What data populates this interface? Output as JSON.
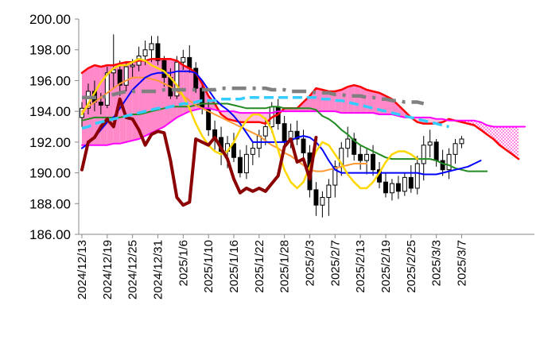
{
  "chart_data": {
    "type": "candlestick",
    "title": "",
    "xlabel": "",
    "ylabel": "",
    "ylim": [
      186,
      200
    ],
    "y_ticks": [
      "186.00",
      "188.00",
      "190.00",
      "192.00",
      "194.00",
      "196.00",
      "198.00",
      "200.00"
    ],
    "x_tick_labels": [
      "2024/12/13",
      "2024/12/19",
      "2024/12/25",
      "2024/12/31",
      "2025/1/6",
      "2025/1/10",
      "2025/1/16",
      "2025/1/22",
      "2025/1/28",
      "2025/2/3",
      "2025/2/7",
      "2025/2/13",
      "2025/2/19",
      "2025/2/25",
      "2025/3/3",
      "2025/3/7"
    ],
    "grid": false,
    "legend": "none",
    "period_count": 72,
    "candles": [
      [
        193.6,
        194.6,
        193.0,
        194.2
      ],
      [
        194.2,
        195.8,
        193.8,
        195.3
      ],
      [
        195.3,
        196.0,
        194.0,
        194.6
      ],
      [
        194.6,
        195.2,
        193.8,
        194.4
      ],
      [
        194.4,
        196.9,
        194.2,
        196.5
      ],
      [
        196.5,
        199.0,
        195.5,
        196.7
      ],
      [
        196.7,
        197.3,
        195.0,
        195.7
      ],
      [
        195.7,
        197.2,
        195.3,
        196.9
      ],
      [
        196.9,
        197.4,
        196.2,
        197.0
      ],
      [
        197.0,
        198.2,
        196.6,
        197.6
      ],
      [
        197.6,
        198.6,
        197.0,
        198.0
      ],
      [
        198.0,
        198.9,
        197.2,
        198.4
      ],
      [
        198.4,
        198.9,
        197.0,
        197.3
      ],
      [
        197.3,
        197.6,
        195.6,
        196.2
      ],
      [
        196.2,
        196.8,
        194.8,
        195.0
      ],
      [
        195.0,
        197.6,
        194.8,
        197.2
      ],
      [
        197.2,
        198.0,
        196.7,
        197.5
      ],
      [
        197.5,
        198.3,
        196.5,
        196.8
      ],
      [
        196.8,
        197.2,
        195.2,
        195.5
      ],
      [
        195.5,
        195.8,
        193.8,
        194.2
      ],
      [
        194.2,
        194.6,
        192.4,
        192.8
      ],
      [
        192.8,
        193.4,
        191.5,
        192.3
      ],
      [
        192.3,
        193.0,
        190.5,
        191.4
      ],
      [
        191.4,
        192.4,
        190.3,
        191.9
      ],
      [
        191.9,
        192.6,
        190.7,
        191.0
      ],
      [
        191.0,
        191.5,
        189.7,
        190.0
      ],
      [
        190.0,
        191.8,
        189.6,
        191.2
      ],
      [
        191.2,
        192.0,
        190.5,
        191.6
      ],
      [
        191.6,
        192.8,
        191.0,
        192.4
      ],
      [
        192.4,
        193.6,
        191.8,
        193.0
      ],
      [
        193.0,
        194.6,
        192.6,
        194.3
      ],
      [
        194.3,
        194.8,
        192.8,
        193.2
      ],
      [
        193.2,
        193.7,
        191.5,
        192.0
      ],
      [
        192.0,
        193.2,
        191.6,
        192.7
      ],
      [
        192.7,
        193.4,
        191.8,
        192.2
      ],
      [
        192.2,
        192.8,
        190.8,
        191.3
      ],
      [
        191.3,
        191.8,
        188.4,
        188.9
      ],
      [
        188.9,
        189.4,
        187.2,
        187.9
      ],
      [
        187.9,
        188.8,
        187.1,
        188.4
      ],
      [
        188.4,
        189.6,
        187.2,
        189.2
      ],
      [
        189.2,
        190.8,
        188.4,
        190.4
      ],
      [
        190.4,
        192.0,
        189.8,
        191.6
      ],
      [
        191.6,
        193.0,
        191.0,
        192.2
      ],
      [
        192.2,
        192.6,
        190.8,
        191.2
      ],
      [
        191.2,
        191.8,
        190.2,
        190.8
      ],
      [
        190.8,
        191.6,
        189.9,
        191.2
      ],
      [
        191.2,
        191.8,
        189.8,
        190.2
      ],
      [
        190.2,
        190.7,
        189.0,
        189.4
      ],
      [
        189.4,
        190.0,
        188.4,
        188.7
      ],
      [
        188.7,
        189.6,
        188.2,
        189.3
      ],
      [
        189.3,
        189.8,
        188.3,
        188.8
      ],
      [
        188.8,
        190.0,
        188.5,
        189.7
      ],
      [
        189.7,
        190.5,
        188.7,
        189.0
      ],
      [
        189.0,
        191.1,
        188.6,
        190.6
      ],
      [
        190.6,
        192.4,
        189.5,
        191.8
      ],
      [
        191.8,
        192.8,
        191.0,
        192.0
      ],
      [
        192.0,
        192.2,
        190.4,
        190.8
      ],
      [
        190.8,
        191.5,
        189.8,
        190.2
      ],
      [
        190.2,
        191.6,
        189.6,
        191.2
      ],
      [
        191.2,
        192.2,
        190.6,
        191.9
      ],
      [
        191.9,
        192.4,
        191.6,
        192.2
      ]
    ],
    "series": [
      {
        "color": "#ff0000",
        "width": 2.5,
        "start": 0,
        "values": [
          196.5,
          196.8,
          197.0,
          196.9,
          197.0,
          197.0,
          197.1,
          197.2,
          197.2,
          197.3,
          197.3,
          197.4,
          197.4,
          197.4,
          197.4,
          197.3,
          197.0,
          196.8,
          196.5,
          195.8,
          195.0,
          194.5,
          193.8,
          193.5,
          193.4,
          193.3,
          193.3,
          193.3,
          193.3,
          193.2,
          193.6,
          193.8,
          194.2,
          194.2,
          194.2,
          194.6,
          195.0,
          195.5,
          195.4,
          195.3,
          195.3,
          195.4,
          195.6,
          195.7,
          195.6,
          195.4,
          195.3,
          195.2,
          195.0,
          194.8,
          194.4,
          194.0,
          193.6,
          193.3,
          193.2,
          193.2,
          193.2,
          193.3,
          193.5,
          193.4,
          193.3,
          193.2,
          193.1,
          192.8,
          192.5,
          192.2,
          191.8,
          191.5,
          191.2,
          190.9
        ]
      },
      {
        "color": "#ff00ff",
        "width": 2,
        "start": 0,
        "values": [
          191.8,
          191.8,
          191.8,
          191.8,
          191.8,
          191.9,
          191.9,
          192.0,
          192.1,
          192.2,
          192.4,
          192.6,
          192.8,
          193.0,
          193.3,
          193.6,
          193.8,
          194.0,
          194.1,
          194.2,
          194.2,
          194.1,
          194.0,
          194.0,
          194.0,
          193.9,
          193.9,
          193.9,
          193.9,
          193.9,
          193.9,
          194.0,
          194.0,
          194.0,
          194.0,
          194.0,
          194.0,
          194.0,
          194.0,
          194.0,
          194.0,
          193.9,
          193.9,
          193.9,
          193.9,
          193.9,
          193.9,
          193.8,
          193.8,
          193.8,
          193.7,
          193.6,
          193.6,
          193.6,
          193.6,
          193.6,
          193.5,
          193.5,
          193.4,
          193.4,
          193.4,
          193.4,
          193.4,
          193.3,
          193.1,
          193.0,
          193.0,
          193.0,
          193.0,
          193.0,
          193.0
        ]
      },
      {
        "color": "#8b0000",
        "width": 4,
        "start": 0,
        "values": [
          190.2,
          192.0,
          192.3,
          193.0,
          193.5,
          193.0,
          194.8,
          193.6,
          193.5,
          192.8,
          191.8,
          192.5,
          192.7,
          192.6,
          190.8,
          188.4,
          187.9,
          188.1,
          192.2,
          192.0,
          191.8,
          192.3,
          191.6,
          190.9,
          189.6,
          188.7,
          189.0,
          188.8,
          189.0,
          188.8,
          189.3,
          189.8,
          191.7,
          192.2,
          190.7,
          190.9,
          189.6,
          192.3
        ]
      },
      {
        "color": "#0000ff",
        "width": 2,
        "start": 0,
        "values": [
          191.6,
          191.9,
          192.3,
          192.8,
          193.3,
          193.6,
          194.2,
          194.8,
          195.4,
          195.8,
          196.2,
          196.4,
          196.5,
          196.5,
          196.5,
          196.6,
          196.6,
          196.6,
          196.5,
          196.0,
          195.4,
          194.8,
          194.4,
          194.1,
          193.7,
          193.2,
          192.6,
          192.0,
          192.0,
          192.0,
          192.0,
          192.0,
          192.0,
          192.1,
          192.3,
          192.4,
          192.3,
          192.0,
          191.5,
          190.8,
          190.2,
          190.0,
          190.0,
          190.0,
          190.0,
          190.0,
          190.0,
          190.0,
          190.0,
          190.0,
          190.0,
          190.0,
          190.0,
          190.0,
          189.9,
          189.9,
          189.9,
          190.0,
          190.1,
          190.2,
          190.3,
          190.4,
          190.6,
          190.8
        ]
      },
      {
        "color": "#228b22",
        "width": 2,
        "start": 0,
        "values": [
          193.4,
          193.5,
          193.6,
          193.6,
          193.6,
          193.6,
          193.6,
          193.7,
          193.8,
          193.8,
          193.9,
          194.0,
          194.1,
          194.2,
          194.3,
          194.3,
          194.3,
          194.3,
          194.4,
          194.5,
          194.5,
          194.5,
          194.5,
          194.5,
          194.4,
          194.3,
          194.2,
          194.2,
          194.2,
          194.2,
          194.3,
          194.3,
          194.2,
          194.2,
          194.2,
          194.2,
          194.2,
          194.1,
          193.7,
          193.5,
          193.2,
          192.8,
          192.5,
          192.1,
          191.8,
          191.6,
          191.4,
          191.2,
          191.0,
          190.9,
          190.9,
          190.9,
          190.9,
          190.9,
          190.9,
          190.9,
          190.8,
          190.6,
          190.5,
          190.3,
          190.2,
          190.1,
          190.1,
          190.1,
          190.1
        ]
      },
      {
        "color": "#ffd700",
        "width": 2.5,
        "start": 0,
        "values": [
          193.8,
          194.5,
          195.2,
          195.9,
          196.4,
          196.8,
          197.0,
          197.0,
          197.2,
          197.4,
          197.3,
          197.0,
          196.8,
          196.6,
          196.2,
          195.7,
          195.0,
          194.2,
          193.2,
          192.4,
          191.8,
          191.4,
          191.2,
          191.4,
          192.0,
          192.8,
          193.4,
          193.8,
          193.8,
          193.5,
          192.8,
          191.5,
          190.2,
          189.4,
          189.0,
          189.4,
          190.4,
          191.4,
          192.0,
          191.8,
          191.2,
          190.6,
          189.9,
          189.4,
          189.0,
          189.0,
          189.4,
          190.0,
          190.7,
          191.2,
          191.4,
          191.4,
          191.2,
          190.9
        ]
      },
      {
        "color": "#ff9933",
        "width": 2,
        "start": 0,
        "values": [
          194.0,
          194.3,
          194.6,
          194.9,
          195.2,
          195.5,
          195.8,
          196.0,
          196.2,
          196.2,
          196.2,
          196.1,
          196.0,
          195.8,
          195.6,
          195.3,
          195.0,
          194.7,
          194.4,
          194.2,
          194.0,
          193.8,
          193.6,
          193.4,
          193.2,
          193.0,
          192.8,
          192.6,
          192.4,
          192.1,
          191.8,
          191.6,
          191.3,
          191.1,
          190.8,
          190.5,
          190.2,
          190.1,
          190.1,
          190.2,
          190.3,
          190.4,
          190.5,
          190.6,
          190.6,
          190.6
        ]
      },
      {
        "color": "#808080",
        "width": 4.5,
        "start": 0,
        "dash": "18 8 4 8",
        "values": [
          194.9,
          194.9,
          194.9,
          194.9,
          195.0,
          195.1,
          195.2,
          195.3,
          195.3,
          195.3,
          195.3,
          195.3,
          195.3,
          195.4,
          195.4,
          195.4,
          195.4,
          195.4,
          195.4,
          195.4,
          195.4,
          195.4,
          195.5,
          195.5,
          195.5,
          195.5,
          195.5,
          195.5,
          195.5,
          195.5,
          195.4,
          195.4,
          195.4,
          195.3,
          195.3,
          195.3,
          195.3,
          195.2,
          195.2,
          195.2,
          195.1,
          195.1,
          195.0,
          195.0,
          195.0,
          194.9,
          194.9,
          194.8,
          194.8,
          194.7,
          194.7,
          194.6,
          194.6,
          194.6,
          194.5
        ]
      },
      {
        "color": "#33ccff",
        "width": 3.5,
        "start": 0,
        "dash": "12 6",
        "values": [
          192.9,
          193.0,
          193.2,
          193.3,
          193.4,
          193.5,
          193.6,
          193.7,
          193.8,
          193.9,
          194.0,
          194.1,
          194.2,
          194.2,
          194.3,
          194.4,
          194.5,
          194.5,
          194.6,
          194.7,
          194.7,
          194.7,
          194.8,
          194.8,
          194.8,
          194.8,
          194.9,
          194.9,
          194.9,
          194.9,
          194.9,
          194.9,
          194.9,
          194.9,
          194.9,
          194.9,
          194.9,
          194.9,
          194.8,
          194.8,
          194.7,
          194.7,
          194.6,
          194.5,
          194.4,
          194.3,
          194.2,
          194.1,
          194.0,
          193.9,
          193.8,
          193.7,
          193.6,
          193.5,
          193.4,
          193.3,
          193.2,
          193.1,
          193.0
        ]
      }
    ]
  }
}
